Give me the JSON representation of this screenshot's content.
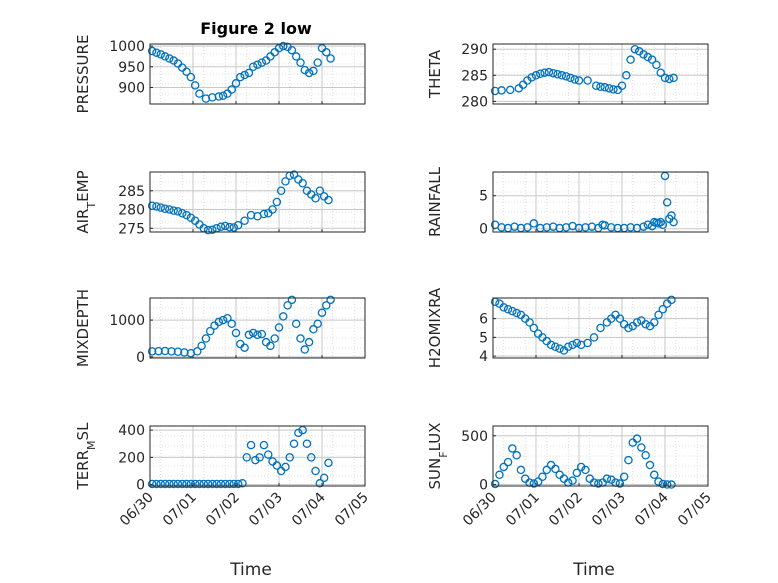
{
  "figure": {
    "title": "Figure 2 low",
    "xlabel": "Time",
    "x_ticks": [
      "06/30",
      "07/01",
      "07/02",
      "07/03",
      "07/04",
      "07/05"
    ]
  },
  "colors": {
    "marker": "#0072BD",
    "axes": "#262626",
    "grid": "#b0b0b0"
  },
  "chart_data": [
    {
      "type": "scatter",
      "ylabel": "PRESSURE",
      "ylim": [
        860,
        1005
      ],
      "yticks": [
        900,
        950,
        1000
      ],
      "x": [
        0.05,
        0.15,
        0.25,
        0.35,
        0.45,
        0.55,
        0.65,
        0.75,
        0.85,
        0.95,
        1.05,
        1.15,
        1.3,
        1.45,
        1.6,
        1.7,
        1.8,
        1.9,
        2.0,
        2.1,
        2.2,
        2.3,
        2.4,
        2.5,
        2.6,
        2.7,
        2.8,
        2.9,
        3.0,
        3.1,
        3.2,
        3.3,
        3.4,
        3.5,
        3.6,
        3.7,
        3.8,
        3.9,
        4.0,
        4.1,
        4.2
      ],
      "y": [
        988,
        984,
        980,
        975,
        970,
        965,
        958,
        948,
        938,
        925,
        905,
        885,
        873,
        876,
        878,
        880,
        885,
        895,
        910,
        925,
        930,
        935,
        950,
        955,
        960,
        965,
        975,
        985,
        995,
        1000,
        998,
        990,
        975,
        960,
        942,
        935,
        940,
        960,
        995,
        985,
        970
      ]
    },
    {
      "type": "scatter",
      "ylabel": "THETA",
      "ylim": [
        279.5,
        291
      ],
      "yticks": [
        280,
        285,
        290
      ],
      "x": [
        0.05,
        0.2,
        0.4,
        0.6,
        0.7,
        0.8,
        0.9,
        1.0,
        1.1,
        1.2,
        1.3,
        1.4,
        1.5,
        1.6,
        1.7,
        1.8,
        1.9,
        2.0,
        2.2,
        2.4,
        2.5,
        2.6,
        2.7,
        2.8,
        2.9,
        3.0,
        3.1,
        3.2,
        3.3,
        3.4,
        3.5,
        3.6,
        3.7,
        3.8,
        3.9,
        4.0,
        4.1,
        4.2
      ],
      "y": [
        282,
        282.1,
        282.2,
        282.5,
        283.2,
        284,
        284.6,
        285,
        285.3,
        285.5,
        285.6,
        285.4,
        285.2,
        285,
        284.8,
        284.5,
        284.2,
        284,
        284,
        283,
        282.8,
        282.7,
        282.5,
        282.3,
        282.2,
        283,
        285,
        288,
        290,
        289.6,
        289,
        288.5,
        288,
        287,
        285.5,
        284.5,
        284.3,
        284.5
      ]
    },
    {
      "type": "scatter",
      "ylabel": "AIR_TEMP",
      "ylim": [
        274,
        290
      ],
      "yticks": [
        275,
        280,
        285
      ],
      "x": [
        0.05,
        0.15,
        0.25,
        0.35,
        0.45,
        0.55,
        0.65,
        0.75,
        0.85,
        0.95,
        1.05,
        1.15,
        1.25,
        1.35,
        1.45,
        1.55,
        1.65,
        1.75,
        1.85,
        1.95,
        2.05,
        2.2,
        2.35,
        2.5,
        2.65,
        2.75,
        2.85,
        2.95,
        3.05,
        3.15,
        3.25,
        3.35,
        3.45,
        3.55,
        3.65,
        3.75,
        3.85,
        3.95,
        4.05,
        4.15
      ],
      "y": [
        281,
        280.8,
        280.5,
        280.2,
        280,
        279.7,
        279.5,
        279,
        278.5,
        277.8,
        277,
        276,
        275,
        274.5,
        274.6,
        275,
        275.4,
        275.6,
        275.3,
        275.2,
        275.8,
        277,
        278.5,
        278.2,
        278.8,
        279,
        280,
        282,
        285,
        287.5,
        289,
        289.3,
        288,
        287,
        285,
        284,
        283,
        285,
        283.5,
        282.5
      ]
    },
    {
      "type": "scatter",
      "ylabel": "RAINFALL",
      "ylim": [
        -0.5,
        8.6
      ],
      "yticks": [
        0,
        5
      ],
      "x": [
        0.05,
        0.2,
        0.35,
        0.5,
        0.65,
        0.8,
        0.95,
        1.1,
        1.25,
        1.4,
        1.55,
        1.7,
        1.85,
        2.0,
        2.15,
        2.3,
        2.45,
        2.55,
        2.6,
        2.75,
        2.9,
        3.05,
        3.2,
        3.35,
        3.5,
        3.6,
        3.7,
        3.75,
        3.8,
        3.85,
        3.9,
        3.95,
        4.0,
        4.05,
        4.1,
        4.15,
        4.2
      ],
      "y": [
        0.6,
        0.2,
        0.1,
        0.3,
        0.1,
        0.2,
        0.8,
        0.1,
        0.2,
        0.3,
        0.1,
        0.2,
        0.4,
        0.1,
        0.2,
        0.3,
        0.1,
        0.6,
        0.5,
        0.2,
        0.1,
        0.1,
        0.2,
        0.1,
        0.3,
        0.6,
        0.4,
        1.0,
        0.9,
        0.8,
        1.0,
        0.6,
        8.0,
        4.0,
        1.5,
        2.0,
        1.0
      ]
    },
    {
      "type": "scatter",
      "ylabel": "MIXDEPTH",
      "ylim": [
        -30,
        1600
      ],
      "yticks": [
        0,
        1000
      ],
      "x": [
        0.05,
        0.2,
        0.35,
        0.5,
        0.65,
        0.8,
        0.95,
        1.1,
        1.2,
        1.3,
        1.4,
        1.5,
        1.6,
        1.7,
        1.8,
        1.9,
        2.0,
        2.1,
        2.2,
        2.3,
        2.4,
        2.5,
        2.6,
        2.7,
        2.8,
        2.9,
        3.0,
        3.1,
        3.2,
        3.3,
        3.4,
        3.5,
        3.6,
        3.7,
        3.8,
        3.9,
        4.0,
        4.1,
        4.2
      ],
      "y": [
        150,
        155,
        160,
        150,
        140,
        120,
        100,
        150,
        300,
        500,
        700,
        850,
        950,
        1000,
        1050,
        900,
        650,
        350,
        250,
        600,
        650,
        600,
        620,
        400,
        300,
        500,
        800,
        1100,
        1400,
        1550,
        900,
        500,
        200,
        400,
        750,
        900,
        1200,
        1400,
        1550
      ]
    },
    {
      "type": "scatter",
      "ylabel": "H2OMIXRA",
      "ylim": [
        3.9,
        7.1
      ],
      "yticks": [
        4,
        5,
        6
      ],
      "x": [
        0.05,
        0.15,
        0.25,
        0.35,
        0.45,
        0.55,
        0.65,
        0.75,
        0.85,
        0.95,
        1.05,
        1.15,
        1.25,
        1.35,
        1.45,
        1.55,
        1.65,
        1.75,
        1.85,
        1.95,
        2.05,
        2.2,
        2.35,
        2.5,
        2.65,
        2.75,
        2.85,
        2.95,
        3.05,
        3.15,
        3.25,
        3.35,
        3.45,
        3.55,
        3.65,
        3.75,
        3.85,
        3.95,
        4.05,
        4.15
      ],
      "y": [
        6.9,
        6.8,
        6.6,
        6.5,
        6.4,
        6.3,
        6.2,
        6.0,
        5.8,
        5.5,
        5.2,
        5.0,
        4.8,
        4.6,
        4.5,
        4.4,
        4.3,
        4.5,
        4.6,
        4.7,
        4.6,
        4.7,
        5.0,
        5.5,
        5.8,
        6.0,
        6.2,
        6.0,
        5.7,
        5.5,
        5.6,
        5.8,
        5.9,
        5.7,
        5.6,
        5.8,
        6.2,
        6.5,
        6.8,
        7.0
      ]
    },
    {
      "type": "scatter",
      "ylabel": "TERR_MSL",
      "ylim": [
        -10,
        430
      ],
      "yticks": [
        0,
        200,
        400
      ],
      "x": [
        0.05,
        0.15,
        0.25,
        0.35,
        0.45,
        0.55,
        0.65,
        0.75,
        0.85,
        0.95,
        1.05,
        1.15,
        1.25,
        1.35,
        1.45,
        1.55,
        1.65,
        1.75,
        1.85,
        1.95,
        2.05,
        2.15,
        2.25,
        2.35,
        2.45,
        2.55,
        2.65,
        2.75,
        2.85,
        2.95,
        3.05,
        3.15,
        3.25,
        3.35,
        3.45,
        3.55,
        3.65,
        3.75,
        3.85,
        3.95,
        4.05,
        4.15
      ],
      "y": [
        5,
        5,
        5,
        5,
        5,
        5,
        5,
        5,
        5,
        5,
        5,
        5,
        5,
        5,
        5,
        5,
        5,
        5,
        5,
        5,
        5,
        10,
        200,
        290,
        180,
        200,
        290,
        220,
        170,
        140,
        100,
        130,
        200,
        300,
        380,
        400,
        300,
        200,
        100,
        10,
        50,
        160
      ]
    },
    {
      "type": "scatter",
      "ylabel": "SUN_FLUX",
      "ylim": [
        -15,
        600
      ],
      "yticks": [
        0,
        500
      ],
      "x": [
        0.05,
        0.15,
        0.25,
        0.35,
        0.45,
        0.55,
        0.65,
        0.75,
        0.85,
        0.95,
        1.05,
        1.15,
        1.25,
        1.35,
        1.45,
        1.55,
        1.65,
        1.75,
        1.85,
        1.95,
        2.05,
        2.15,
        2.25,
        2.35,
        2.45,
        2.55,
        2.65,
        2.75,
        2.85,
        2.95,
        3.05,
        3.15,
        3.25,
        3.35,
        3.45,
        3.55,
        3.65,
        3.75,
        3.85,
        3.95,
        4.05,
        4.15
      ],
      "y": [
        5,
        100,
        180,
        230,
        370,
        300,
        150,
        60,
        20,
        10,
        30,
        80,
        150,
        200,
        160,
        100,
        60,
        20,
        40,
        120,
        180,
        150,
        60,
        20,
        10,
        20,
        60,
        50,
        20,
        10,
        80,
        250,
        430,
        470,
        380,
        300,
        200,
        100,
        30,
        5,
        0,
        0
      ]
    }
  ]
}
